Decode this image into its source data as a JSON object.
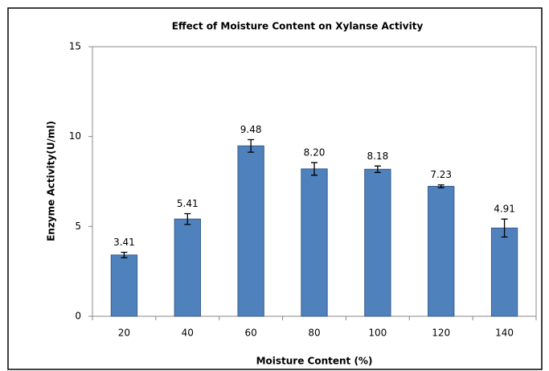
{
  "chart_data": {
    "type": "bar",
    "title": "Effect of Moisture Content on  Xylanse  Activity",
    "x_label": "Moisture Content (%)",
    "y_label": "Enzyme Activity(U/ml)",
    "categories": [
      "20",
      "40",
      "60",
      "80",
      "100",
      "120",
      "140"
    ],
    "values": [
      3.41,
      5.41,
      9.48,
      8.2,
      8.18,
      7.23,
      4.91
    ],
    "value_labels": [
      "3.41",
      "5.41",
      "9.48",
      "8.20",
      "8.18",
      "7.23",
      "4.91"
    ],
    "errors": [
      0.15,
      0.3,
      0.35,
      0.35,
      0.18,
      0.08,
      0.5
    ],
    "color": "#4f81bd",
    "ylim": [
      0,
      15
    ],
    "yticks": [
      0,
      5,
      10,
      15
    ],
    "grid": false
  }
}
